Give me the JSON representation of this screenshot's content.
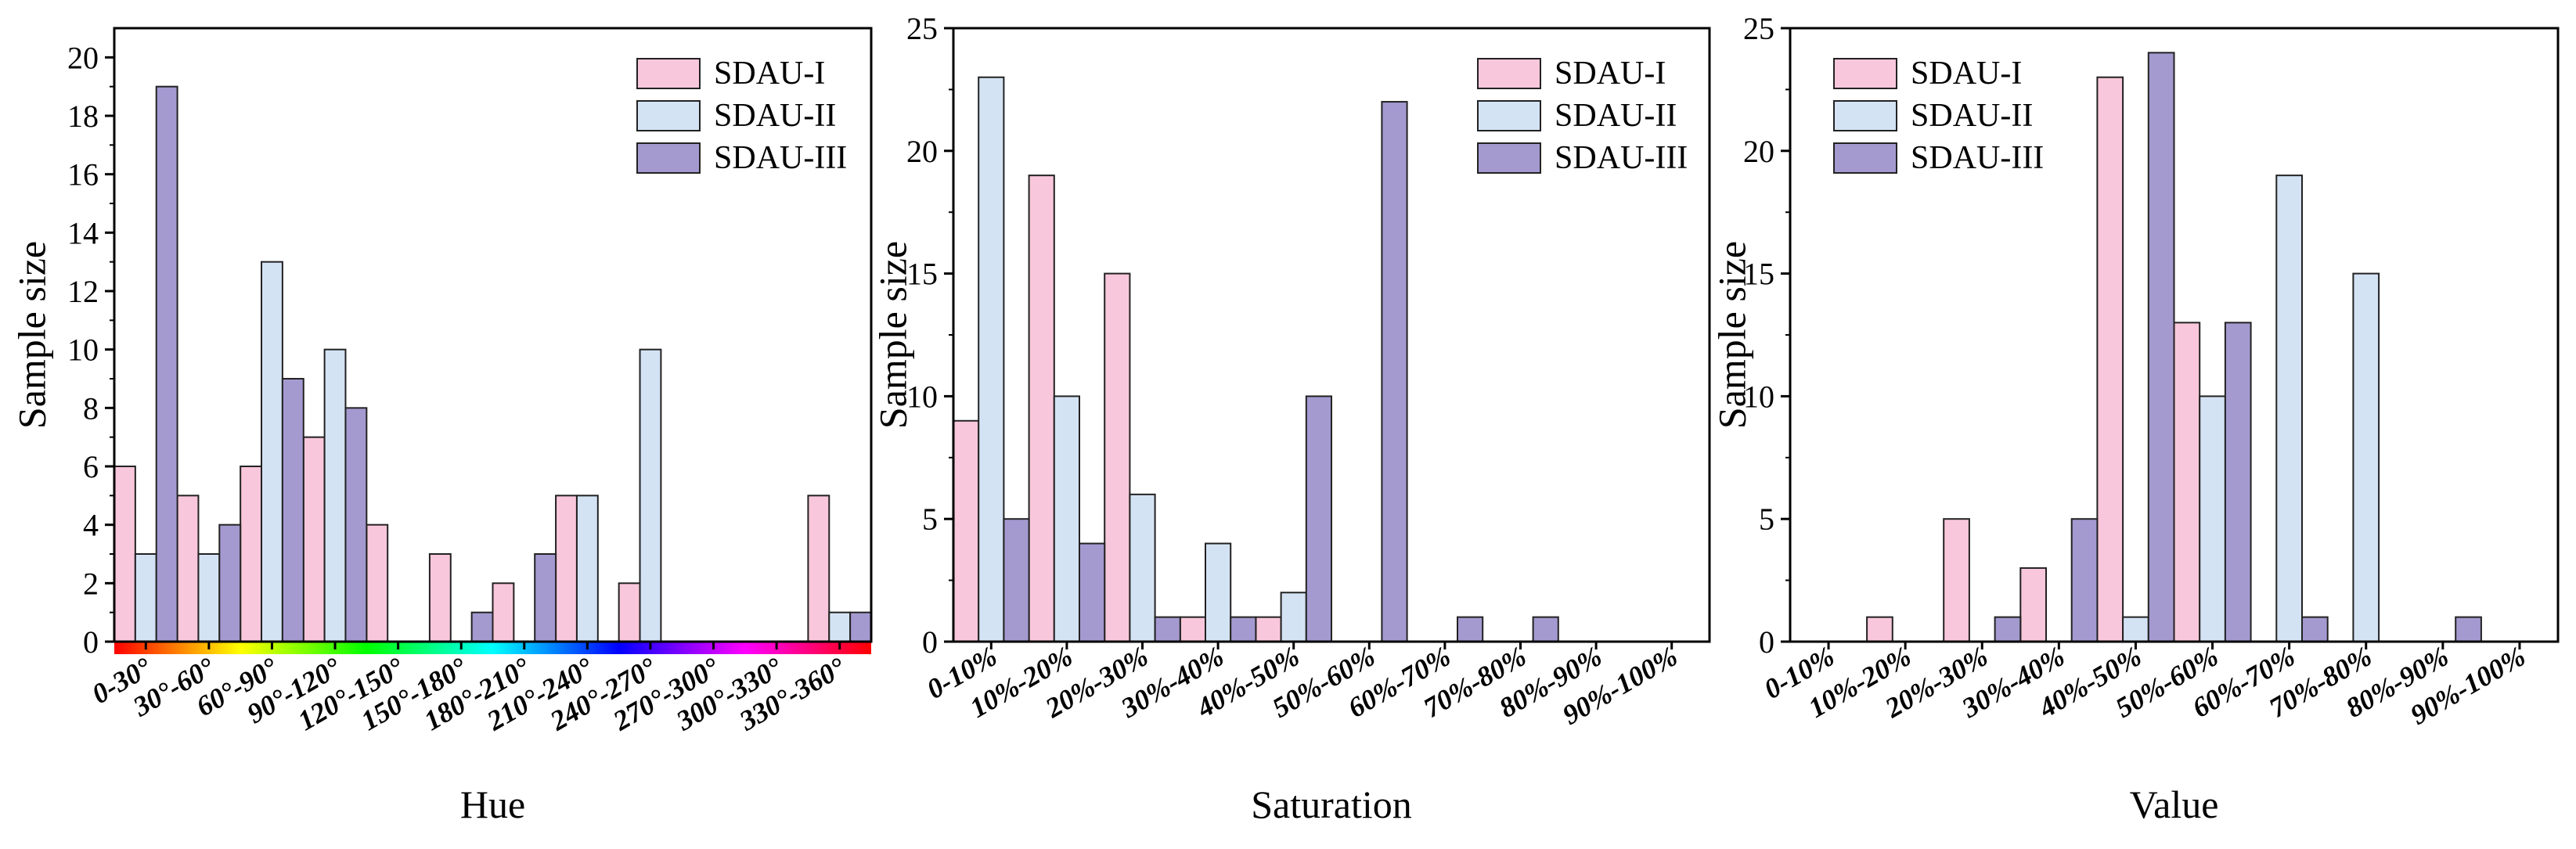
{
  "colors": {
    "sdau_i": "#F9C7DB",
    "sdau_ii": "#D4E3F4",
    "sdau_iii": "#A49AD0",
    "stroke": "#222222",
    "axis": "#000000"
  },
  "chart_data": [
    {
      "type": "bar",
      "xlabel": "Hue",
      "ylabel": "Sample size",
      "ylim": [
        0,
        21
      ],
      "yticks": [
        0,
        2,
        4,
        6,
        8,
        10,
        12,
        14,
        16,
        18,
        20
      ],
      "categories": [
        "0-30°",
        "30°-60°",
        "60°-90°",
        "90°-120°",
        "120°-150°",
        "150°-180°",
        "180°-210°",
        "210°-240°",
        "240°-270°",
        "270°-300°",
        "300°-330°",
        "330°-360°"
      ],
      "series": [
        {
          "name": "SDAU-I",
          "values": [
            6,
            5,
            6,
            7,
            4,
            3,
            2,
            5,
            2,
            0,
            0,
            5
          ]
        },
        {
          "name": "SDAU-II",
          "values": [
            3,
            3,
            13,
            10,
            0,
            0,
            0,
            5,
            10,
            0,
            0,
            1
          ]
        },
        {
          "name": "SDAU-III",
          "values": [
            19,
            4,
            9,
            8,
            0,
            1,
            3,
            0,
            0,
            0,
            0,
            1
          ]
        }
      ],
      "legend": [
        "SDAU-I",
        "SDAU-II",
        "SDAU-III"
      ],
      "legend_position": "top-right",
      "hue_color_strip": true
    },
    {
      "type": "bar",
      "xlabel": "Saturation",
      "ylabel": "Sample size",
      "ylim": [
        0,
        25
      ],
      "yticks": [
        0,
        5,
        10,
        15,
        20,
        25
      ],
      "categories": [
        "0-10%",
        "10%-20%",
        "20%-30%",
        "30%-40%",
        "40%-50%",
        "50%-60%",
        "60%-70%",
        "70%-80%",
        "80%-90%",
        "90%-100%"
      ],
      "series": [
        {
          "name": "SDAU-I",
          "values": [
            9,
            19,
            15,
            1,
            1,
            0,
            0,
            0,
            0,
            0
          ]
        },
        {
          "name": "SDAU-II",
          "values": [
            23,
            10,
            6,
            4,
            2,
            0,
            0,
            0,
            0,
            0
          ]
        },
        {
          "name": "SDAU-III",
          "values": [
            5,
            4,
            1,
            1,
            10,
            22,
            1,
            1,
            0,
            0
          ]
        }
      ],
      "legend": [
        "SDAU-I",
        "SDAU-II",
        "SDAU-III"
      ],
      "legend_position": "top-right"
    },
    {
      "type": "bar",
      "xlabel": "Value",
      "ylabel": "Sample size",
      "ylim": [
        0,
        25
      ],
      "yticks": [
        0,
        5,
        10,
        15,
        20,
        25
      ],
      "categories": [
        "0-10%",
        "10%-20%",
        "20%-30%",
        "30%-40%",
        "40%-50%",
        "50%-60%",
        "60%-70%",
        "70%-80%",
        "80%-90%",
        "90%-100%"
      ],
      "series": [
        {
          "name": "SDAU-I",
          "values": [
            0,
            1,
            5,
            3,
            23,
            13,
            0,
            0,
            0,
            0
          ]
        },
        {
          "name": "SDAU-II",
          "values": [
            0,
            0,
            0,
            0,
            1,
            10,
            19,
            15,
            0,
            0
          ]
        },
        {
          "name": "SDAU-III",
          "values": [
            0,
            0,
            1,
            5,
            24,
            13,
            1,
            0,
            1,
            0
          ]
        }
      ],
      "legend": [
        "SDAU-I",
        "SDAU-II",
        "SDAU-III"
      ],
      "legend_position": "top-left"
    }
  ]
}
